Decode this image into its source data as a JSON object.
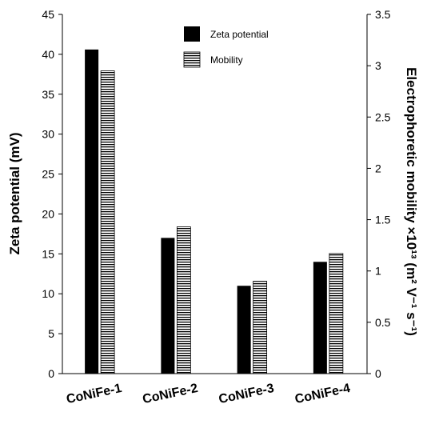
{
  "chart_data": {
    "type": "bar",
    "categories": [
      "CoNiFe-1",
      "CoNiFe-2",
      "CoNiFe-3",
      "CoNiFe-4"
    ],
    "series": [
      {
        "name": "Zeta potential",
        "axis": "left",
        "pattern": "solid",
        "values": [
          40.6,
          17.0,
          11.0,
          14.0
        ]
      },
      {
        "name": "Mobility",
        "axis": "right",
        "pattern": "horizontal-stripes",
        "values": [
          2.95,
          1.43,
          0.9,
          1.17
        ]
      }
    ],
    "ylabel": "Zeta potential (mV)",
    "ylabel_right": "Electrophoretic mobility ×10¹³ (m² V⁻¹ s⁻¹)",
    "ylim": [
      0,
      45
    ],
    "ylim_right": [
      0,
      3.5
    ],
    "yticks": [
      "0",
      "5",
      "10",
      "15",
      "20",
      "25",
      "30",
      "35",
      "40",
      "45"
    ],
    "yticks_right": [
      "0",
      "0.5",
      "1",
      "1.5",
      "2",
      "2.5",
      "3",
      "3.5"
    ],
    "legend_position": "top-center",
    "grid": false,
    "colors": {
      "bar_fill": "#000000",
      "stripe_bg": "#ffffff"
    }
  }
}
